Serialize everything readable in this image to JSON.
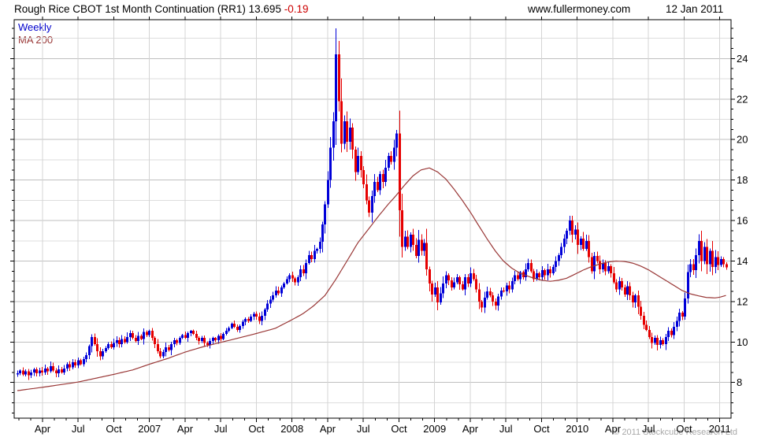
{
  "header": {
    "title": "Rough Rice CBOT 1st Month Continuation (RR1)",
    "last_price": "13.695",
    "change": "-0.19",
    "website": "www.fullermoney.com",
    "date": "12 Jan 2011"
  },
  "legend": {
    "timeframe": "Weekly",
    "ma": "MA 200"
  },
  "footer": {
    "copyright": "© 2011 Stockcube Research Ltd"
  },
  "colors": {
    "up": "#0000d8",
    "down": "#e60000",
    "ma_line": "#993736",
    "grid_major": "#bfbfbf",
    "grid_minor": "#dedede",
    "grid_vertical": "#d4d4d4",
    "axis": "#000000",
    "label": "#000000",
    "change_negative": "#cc0000",
    "legend_weekly": "#0000cc",
    "copyright_gray": "#a8a8a8",
    "background": "#ffffff"
  },
  "chart_data": {
    "type": "candlestick",
    "title": "Rough Rice CBOT 1st Month Continuation (RR1)",
    "interval": "Weekly",
    "overlay": "MA 200",
    "last_close": 13.695,
    "change": -0.19,
    "ylim": [
      6.24,
      25.92
    ],
    "y_major_ticks": [
      8,
      10,
      12,
      14,
      16,
      18,
      20,
      22,
      24
    ],
    "y_grid_step": 1,
    "y_minor_step": 0.5,
    "x_start": "Feb 2006",
    "x_quarter_labels": [
      "Apr",
      "Jul",
      "Oct",
      "2007",
      "Apr",
      "Jul",
      "Oct",
      "2008",
      "Apr",
      "Jul",
      "Oct",
      "2009",
      "Apr",
      "Jul",
      "Oct",
      "2010",
      "Apr",
      "Jul",
      "Oct",
      "2011"
    ],
    "grid": true,
    "legend_position": "top-left",
    "first_open": 8.4,
    "weekly_closes": [
      8.45,
      8.6,
      8.4,
      8.55,
      8.35,
      8.5,
      8.65,
      8.45,
      8.6,
      8.5,
      8.7,
      8.55,
      8.8,
      8.6,
      8.45,
      8.65,
      8.5,
      8.7,
      8.9,
      8.75,
      9.0,
      8.85,
      9.1,
      8.9,
      9.15,
      9.35,
      9.8,
      10.25,
      9.9,
      9.55,
      9.3,
      9.55,
      9.7,
      9.9,
      9.75,
      9.95,
      10.1,
      9.9,
      10.15,
      10.0,
      10.25,
      10.45,
      10.2,
      10.05,
      10.3,
      10.15,
      10.5,
      10.35,
      10.55,
      10.2,
      9.9,
      9.55,
      9.3,
      9.5,
      9.75,
      9.6,
      9.9,
      10.1,
      9.95,
      10.2,
      10.35,
      10.2,
      10.45,
      10.55,
      10.4,
      10.2,
      10.05,
      10.2,
      9.95,
      9.85,
      10.05,
      10.2,
      10.1,
      10.3,
      10.15,
      10.4,
      10.55,
      10.7,
      10.9,
      10.75,
      10.6,
      10.8,
      11.0,
      11.15,
      11.05,
      11.25,
      11.4,
      11.25,
      11.05,
      11.3,
      11.6,
      11.9,
      12.1,
      12.3,
      12.55,
      12.4,
      12.7,
      12.9,
      13.1,
      13.3,
      13.15,
      12.95,
      13.2,
      13.6,
      13.4,
      13.9,
      14.3,
      14.1,
      14.5,
      14.6,
      14.95,
      15.8,
      16.8,
      18.0,
      19.6,
      20.9,
      24.2,
      21.9,
      19.8,
      20.9,
      19.9,
      20.6,
      19.5,
      18.4,
      19.2,
      18.5,
      17.8,
      17.0,
      16.4,
      17.2,
      17.9,
      17.5,
      18.3,
      17.9,
      18.6,
      19.2,
      18.9,
      19.6,
      20.3,
      16.5,
      14.7,
      15.2,
      14.7,
      15.3,
      14.8,
      14.25,
      15.05,
      14.5,
      14.9,
      13.6,
      12.9,
      12.35,
      12.7,
      11.95,
      12.4,
      12.9,
      13.3,
      13.05,
      12.7,
      12.95,
      13.2,
      12.85,
      12.6,
      13.2,
      12.9,
      13.4,
      13.1,
      12.6,
      12.0,
      11.7,
      12.2,
      12.5,
      12.3,
      12.0,
      11.8,
      12.25,
      12.55,
      12.5,
      12.8,
      12.6,
      13.0,
      13.3,
      13.1,
      13.45,
      13.2,
      13.6,
      13.9,
      13.5,
      13.1,
      13.4,
      13.2,
      13.55,
      13.3,
      13.6,
      13.4,
      13.7,
      14.0,
      14.3,
      14.7,
      15.1,
      15.5,
      16.0,
      15.3,
      15.55,
      14.8,
      15.1,
      14.6,
      15.0,
      14.2,
      13.5,
      14.25,
      14.0,
      13.6,
      13.9,
      13.5,
      13.75,
      13.4,
      12.95,
      12.6,
      13.0,
      12.7,
      12.35,
      12.75,
      12.3,
      11.95,
      12.3,
      11.75,
      11.3,
      10.85,
      10.6,
      10.25,
      9.95,
      10.2,
      9.85,
      10.1,
      9.9,
      10.25,
      10.55,
      10.35,
      10.75,
      11.05,
      11.45,
      11.25,
      12.15,
      13.45,
      13.85,
      13.55,
      14.3,
      15.0,
      14.0,
      14.7,
      13.85,
      14.5,
      13.7,
      14.2,
      13.8,
      14.1,
      13.85,
      13.695
    ],
    "ma_points": [
      [
        0,
        7.6
      ],
      [
        10,
        7.78
      ],
      [
        22,
        8.02
      ],
      [
        35,
        8.4
      ],
      [
        42,
        8.62
      ],
      [
        48,
        8.9
      ],
      [
        55,
        9.2
      ],
      [
        61,
        9.5
      ],
      [
        68,
        9.78
      ],
      [
        74,
        9.98
      ],
      [
        80,
        10.18
      ],
      [
        87,
        10.42
      ],
      [
        94,
        10.68
      ],
      [
        100,
        11.1
      ],
      [
        104,
        11.4
      ],
      [
        108,
        11.8
      ],
      [
        112,
        12.3
      ],
      [
        116,
        13.1
      ],
      [
        120,
        14.0
      ],
      [
        124,
        14.9
      ],
      [
        128,
        15.6
      ],
      [
        132,
        16.3
      ],
      [
        135,
        16.8
      ],
      [
        138,
        17.25
      ],
      [
        141,
        17.75
      ],
      [
        144,
        18.2
      ],
      [
        147,
        18.5
      ],
      [
        150,
        18.6
      ],
      [
        153,
        18.4
      ],
      [
        156,
        18.05
      ],
      [
        159,
        17.55
      ],
      [
        162,
        17.0
      ],
      [
        165,
        16.4
      ],
      [
        168,
        15.75
      ],
      [
        171,
        15.1
      ],
      [
        174,
        14.5
      ],
      [
        177,
        14.0
      ],
      [
        180,
        13.65
      ],
      [
        183,
        13.4
      ],
      [
        187,
        13.2
      ],
      [
        191,
        13.05
      ],
      [
        194,
        13.0
      ],
      [
        197,
        13.05
      ],
      [
        200,
        13.15
      ],
      [
        203,
        13.35
      ],
      [
        206,
        13.55
      ],
      [
        209,
        13.72
      ],
      [
        212,
        13.85
      ],
      [
        215,
        13.95
      ],
      [
        218,
        14.0
      ],
      [
        221,
        13.98
      ],
      [
        224,
        13.9
      ],
      [
        227,
        13.75
      ],
      [
        230,
        13.55
      ],
      [
        233,
        13.3
      ],
      [
        236,
        13.05
      ],
      [
        239,
        12.8
      ],
      [
        242,
        12.55
      ],
      [
        245,
        12.38
      ],
      [
        248,
        12.28
      ],
      [
        251,
        12.2
      ],
      [
        254,
        12.18
      ],
      [
        256,
        12.22
      ],
      [
        258,
        12.3
      ]
    ]
  }
}
